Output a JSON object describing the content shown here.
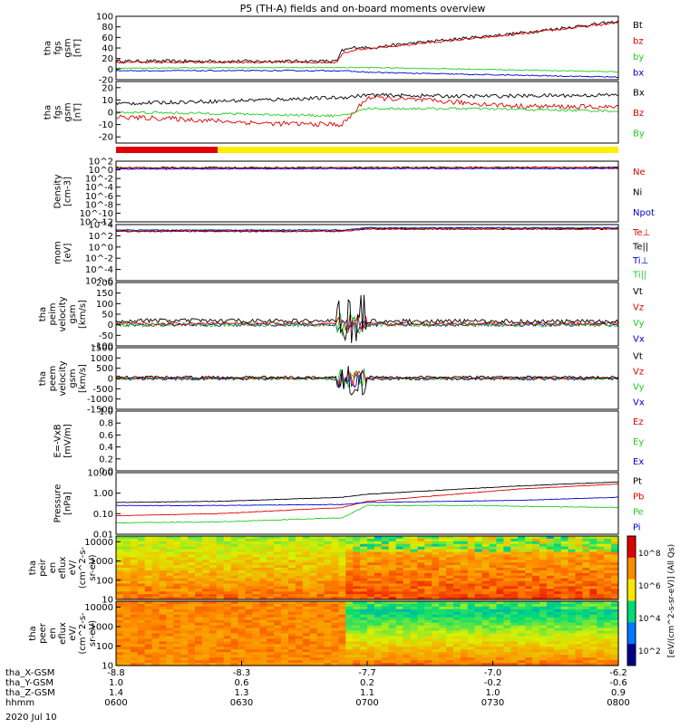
{
  "title": "P5 (TH-A) fields and on-board moments overview",
  "date_label": "2020 Jul 10",
  "time_axis": {
    "row_labels": [
      "tha_X-GSM",
      "tha_Y-GSM",
      "tha_Z-GSM",
      "hhmm"
    ],
    "columns": [
      {
        "values": [
          "-8.8",
          "1.0",
          "1.4",
          "0600"
        ]
      },
      {
        "values": [
          "-8.3",
          "0.6",
          "1.3",
          "0630"
        ]
      },
      {
        "values": [
          "-7.7",
          "0.2",
          "1.1",
          "0700"
        ]
      },
      {
        "values": [
          "-7.0",
          "-0.2",
          "1.0",
          "0730"
        ]
      },
      {
        "values": [
          "-6.2",
          "-0.6",
          "0.9",
          "0800"
        ]
      }
    ]
  },
  "colors": {
    "black": "#000000",
    "red": "#e00000",
    "green": "#22cc22",
    "blue": "#0000cc",
    "yellow": "#ffee00"
  },
  "chart_data": [
    {
      "type": "line",
      "ylabel": [
        "tha",
        "fgs",
        "gsm",
        "[nT]"
      ],
      "ylim": [
        -20,
        100
      ],
      "ticks": [
        "100",
        "80",
        "60",
        "40",
        "20",
        "0",
        "-20"
      ],
      "tick_values": [
        100,
        80,
        60,
        40,
        20,
        0,
        -20
      ],
      "legend": [
        {
          "name": "Bt",
          "color": "black"
        },
        {
          "name": "bz",
          "color": "red"
        },
        {
          "name": "by",
          "color": "green"
        },
        {
          "name": "bx",
          "color": "blue"
        }
      ],
      "series": [
        {
          "name": "Bt",
          "color": "black",
          "x": [
            0,
            0.44,
            0.45,
            0.48,
            0.5,
            0.6,
            0.8,
            1.0
          ],
          "y": [
            15,
            15,
            35,
            42,
            40,
            50,
            68,
            90
          ],
          "noise": 3
        },
        {
          "name": "bz",
          "color": "red",
          "x": [
            0,
            0.44,
            0.45,
            0.48,
            0.5,
            0.6,
            0.8,
            1.0
          ],
          "y": [
            13,
            13,
            30,
            38,
            38,
            48,
            66,
            88
          ],
          "noise": 2
        },
        {
          "name": "by",
          "color": "green",
          "x": [
            0,
            0.3,
            0.5,
            0.7,
            1.0
          ],
          "y": [
            2,
            3,
            3,
            0,
            -5
          ],
          "noise": 1
        },
        {
          "name": "bx",
          "color": "blue",
          "x": [
            0,
            0.45,
            0.5,
            0.7,
            1.0
          ],
          "y": [
            -3,
            -3,
            -6,
            -10,
            -15
          ],
          "noise": 1
        }
      ]
    },
    {
      "type": "line",
      "ylabel": [
        "tha",
        "fgs",
        "gsm",
        "[nT]"
      ],
      "ylim": [
        -25,
        25
      ],
      "ticks": [
        "20",
        "10",
        "0",
        "-10",
        "-20"
      ],
      "tick_values": [
        20,
        10,
        0,
        -10,
        -20
      ],
      "legend": [
        {
          "name": "Bx",
          "color": "black"
        },
        {
          "name": "Bz",
          "color": "red"
        },
        {
          "name": "By",
          "color": "green"
        }
      ],
      "series": [
        {
          "name": "Bx",
          "color": "black",
          "x": [
            0,
            0.2,
            0.45,
            0.5,
            0.7,
            1.0
          ],
          "y": [
            7,
            9,
            12,
            14,
            13,
            14
          ],
          "noise": 1.5
        },
        {
          "name": "Bz",
          "color": "red",
          "x": [
            0,
            0.1,
            0.3,
            0.45,
            0.47,
            0.5,
            0.6,
            0.8,
            1.0
          ],
          "y": [
            -4,
            -5,
            -9,
            -10,
            -2,
            12,
            10,
            5,
            4
          ],
          "noise": 2
        },
        {
          "name": "By",
          "color": "green",
          "x": [
            0,
            0.2,
            0.45,
            0.5,
            0.7,
            1.0
          ],
          "y": [
            0,
            -1,
            -3,
            3,
            3,
            1
          ],
          "noise": 1
        }
      ]
    },
    {
      "type": "line",
      "ylabel": [
        "Density",
        "[cm-3]"
      ],
      "ylim": [
        -12,
        2
      ],
      "log": true,
      "ticks": [
        "10^2",
        "10^0",
        "10^-2",
        "10^-4",
        "10^-6",
        "10^-8",
        "10^-10",
        "10^-12"
      ],
      "tick_values": [
        2,
        0,
        -2,
        -4,
        -6,
        -8,
        -10,
        -12
      ],
      "legend": [
        {
          "name": "Ne",
          "color": "red"
        },
        {
          "name": "Ni",
          "color": "black"
        },
        {
          "name": "Npot",
          "color": "blue"
        }
      ],
      "series": [
        {
          "name": "Ni",
          "color": "black",
          "x": [
            0,
            1
          ],
          "y": [
            0.5,
            0.6
          ],
          "noise": 0.15
        },
        {
          "name": "Ne",
          "color": "red",
          "x": [
            0,
            1
          ],
          "y": [
            0.4,
            0.5
          ],
          "noise": 0.15
        },
        {
          "name": "Npot",
          "color": "blue",
          "x": [
            0,
            1
          ],
          "y": [
            0.2,
            0.3
          ],
          "noise": 0.1
        }
      ]
    },
    {
      "type": "line",
      "ylabel": [
        "mom",
        "[eV]"
      ],
      "ylim": [
        -6,
        4
      ],
      "log": true,
      "ticks": [
        "10^4",
        "10^2",
        "10^0",
        "10^-2",
        "10^-4",
        "10^-6"
      ],
      "tick_values": [
        4,
        2,
        0,
        -2,
        -4,
        -6
      ],
      "legend": [
        {
          "name": "Te⊥",
          "color": "red"
        },
        {
          "name": "Te||",
          "color": "black"
        },
        {
          "name": "Ti⊥",
          "color": "blue"
        },
        {
          "name": "Ti||",
          "color": "green"
        }
      ],
      "series": [
        {
          "name": "Ti||",
          "color": "green",
          "x": [
            0,
            0.45,
            0.5,
            1
          ],
          "y": [
            3,
            3,
            3.4,
            3.4
          ],
          "noise": 0.1
        },
        {
          "name": "Ti⊥",
          "color": "blue",
          "x": [
            0,
            0.45,
            0.5,
            1
          ],
          "y": [
            3,
            3,
            3.4,
            3.4
          ],
          "noise": 0.1
        },
        {
          "name": "Te||",
          "color": "black",
          "x": [
            0,
            0.45,
            0.5,
            1
          ],
          "y": [
            2.8,
            2.8,
            3.2,
            3.2
          ],
          "noise": 0.1
        },
        {
          "name": "Te⊥",
          "color": "red",
          "x": [
            0,
            0.45,
            0.5,
            1
          ],
          "y": [
            2.8,
            2.8,
            3.2,
            3.2
          ],
          "noise": 0.1
        }
      ]
    },
    {
      "type": "line",
      "ylabel": [
        "tha",
        "peim",
        "velocity",
        "gsm",
        "[km/s]"
      ],
      "ylim": [
        -100,
        200
      ],
      "ticks": [
        "200",
        "150",
        "100",
        "50",
        "0",
        "-50",
        "-100"
      ],
      "tick_values": [
        200,
        150,
        100,
        50,
        0,
        -50,
        -100
      ],
      "legend": [
        {
          "name": "Vt",
          "color": "black"
        },
        {
          "name": "Vz",
          "color": "red"
        },
        {
          "name": "Vy",
          "color": "green"
        },
        {
          "name": "Vx",
          "color": "blue"
        }
      ],
      "series": [
        {
          "name": "Vx",
          "color": "blue",
          "x": [
            0,
            1
          ],
          "y": [
            0,
            0
          ],
          "noise": 8,
          "burst": 30
        },
        {
          "name": "Vy",
          "color": "green",
          "x": [
            0,
            1
          ],
          "y": [
            0,
            0
          ],
          "noise": 10,
          "burst": 60
        },
        {
          "name": "Vz",
          "color": "red",
          "x": [
            0,
            1
          ],
          "y": [
            5,
            5
          ],
          "noise": 8,
          "burst": 40
        },
        {
          "name": "Vt",
          "color": "black",
          "x": [
            0,
            1
          ],
          "y": [
            20,
            15
          ],
          "noise": 10,
          "burst": 120
        }
      ]
    },
    {
      "type": "line",
      "ylabel": [
        "tha",
        "peem",
        "velocity",
        "gsm",
        "[km/s]"
      ],
      "ylim": [
        -1500,
        1500
      ],
      "ticks": [
        "1500",
        "1000",
        "500",
        "0",
        "-500",
        "-1000",
        "-1500"
      ],
      "tick_values": [
        1500,
        1000,
        500,
        0,
        -500,
        -1000,
        -1500
      ],
      "legend": [
        {
          "name": "Vt",
          "color": "black"
        },
        {
          "name": "Vz",
          "color": "red"
        },
        {
          "name": "Vy",
          "color": "green"
        },
        {
          "name": "Vx",
          "color": "blue"
        }
      ],
      "series": [
        {
          "name": "Vx",
          "color": "blue",
          "x": [
            0,
            1
          ],
          "y": [
            -20,
            -20
          ],
          "noise": 60,
          "burst": 500
        },
        {
          "name": "Vy",
          "color": "green",
          "x": [
            0,
            1
          ],
          "y": [
            -10,
            -10
          ],
          "noise": 50,
          "burst": 500
        },
        {
          "name": "Vz",
          "color": "red",
          "x": [
            0,
            1
          ],
          "y": [
            20,
            20
          ],
          "noise": 40,
          "burst": 400
        },
        {
          "name": "Vt",
          "color": "black",
          "x": [
            0,
            1
          ],
          "y": [
            60,
            60
          ],
          "noise": 60,
          "burst": 1000
        }
      ]
    },
    {
      "type": "line",
      "ylabel": [
        "E=-VxB",
        "[mV/m]"
      ],
      "ylim": [
        0,
        1
      ],
      "ticks": [
        "1.0",
        "0.8",
        "0.6",
        "0.4",
        "0.2",
        "0.0"
      ],
      "tick_values": [
        1.0,
        0.8,
        0.6,
        0.4,
        0.2,
        0.0
      ],
      "legend": [
        {
          "name": "Ez",
          "color": "red"
        },
        {
          "name": "Ey",
          "color": "green"
        },
        {
          "name": "Ex",
          "color": "blue"
        }
      ],
      "series": []
    },
    {
      "type": "line",
      "ylabel": [
        "Pressure",
        "[nPa]"
      ],
      "ylim": [
        -2,
        1
      ],
      "log": true,
      "ticks": [
        "10.00",
        "1.00",
        "0.10",
        "0.01"
      ],
      "tick_values": [
        1,
        0,
        -1,
        -2
      ],
      "legend": [
        {
          "name": "Pt",
          "color": "black"
        },
        {
          "name": "Pb",
          "color": "red"
        },
        {
          "name": "Pe",
          "color": "green"
        },
        {
          "name": "Pi",
          "color": "blue"
        }
      ],
      "series": [
        {
          "name": "Pt",
          "color": "black",
          "x": [
            0,
            0.2,
            0.45,
            0.5,
            0.8,
            1.0
          ],
          "y": [
            -0.45,
            -0.4,
            -0.2,
            -0.05,
            0.35,
            0.55
          ],
          "noise": 0.01
        },
        {
          "name": "Pb",
          "color": "red",
          "x": [
            0,
            0.2,
            0.45,
            0.5,
            0.8,
            1.0
          ],
          "y": [
            -1.1,
            -1.0,
            -0.7,
            -0.4,
            0.2,
            0.45
          ],
          "noise": 0.01
        },
        {
          "name": "Pe",
          "color": "green",
          "x": [
            0,
            0.2,
            0.45,
            0.5,
            0.7,
            1.0
          ],
          "y": [
            -1.45,
            -1.4,
            -1.2,
            -0.6,
            -0.6,
            -0.7
          ],
          "noise": 0.02
        },
        {
          "name": "Pi",
          "color": "blue",
          "x": [
            0,
            0.2,
            0.45,
            0.5,
            0.8,
            1.0
          ],
          "y": [
            -0.6,
            -0.6,
            -0.55,
            -0.45,
            -0.35,
            -0.2
          ],
          "noise": 0.01
        }
      ]
    },
    {
      "type": "heatmap",
      "ylabel": [
        "tha",
        "peir",
        "en",
        "eflux",
        "eV/",
        "(cm^2-s-",
        "sr-eV)"
      ],
      "ylim": [
        1,
        4.3
      ],
      "log": true,
      "ticks": [
        "10000",
        "1000",
        "100",
        "10"
      ],
      "tick_values": [
        4,
        3,
        2,
        1
      ]
    },
    {
      "type": "heatmap",
      "ylabel": [
        "tha",
        "peer",
        "en",
        "eflux",
        "eV/",
        "(cm^2-s-",
        "sr-eV)"
      ],
      "ylim": [
        1,
        4.3
      ],
      "log": true,
      "ticks": [
        "10000",
        "1000",
        "100",
        "10"
      ],
      "tick_values": [
        4,
        3,
        2,
        1
      ]
    }
  ],
  "colorbar": {
    "label": "[eV/(cm^2-s-sr-eV)] (All Qs)",
    "ticks": [
      "10^8",
      "10^6",
      "10^4",
      "10^2"
    ]
  }
}
